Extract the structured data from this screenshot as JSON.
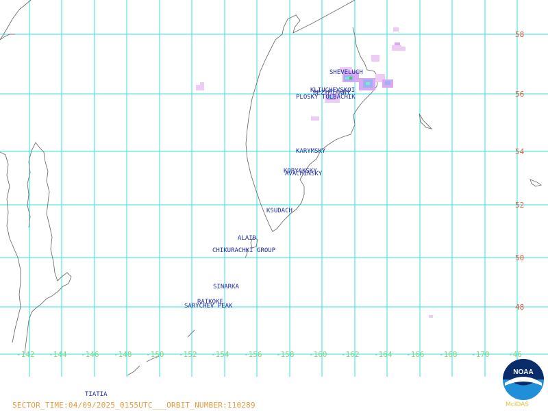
{
  "map": {
    "longitude_labels": [
      "-142",
      "-144",
      "-146",
      "-148",
      "-150",
      "-152",
      "-154",
      "-156",
      "-158",
      "-160",
      "-162",
      "-164",
      "-166",
      "-168",
      "-170",
      "-46"
    ],
    "latitude_labels": [
      "58",
      "56",
      "54",
      "52",
      "50",
      "48"
    ],
    "volcanoes": [
      {
        "name": "SHEVELUCH"
      },
      {
        "name": "KLIUCHEVSKOI"
      },
      {
        "name": "BEZYMIANNY"
      },
      {
        "name": "PLOSKY TOLBACHIK"
      },
      {
        "name": "KARYMSKY"
      },
      {
        "name": "KORYAKSKY"
      },
      {
        "name": "AVACHINSKY"
      },
      {
        "name": "KSUDACH"
      },
      {
        "name": "ALAID"
      },
      {
        "name": "CHIKURACHKI GROUP"
      },
      {
        "name": "SINARKA"
      },
      {
        "name": "RAIKOKE"
      },
      {
        "name": "SARYCHEV PEAK"
      },
      {
        "name": "TIATIA"
      }
    ]
  },
  "footer": {
    "text": "SECTOR_TIME:04/09/2025_0155UTC___ORBIT_NUMBER:110289"
  },
  "logo": {
    "text": "NOAA",
    "caption": "McIDAS"
  }
}
